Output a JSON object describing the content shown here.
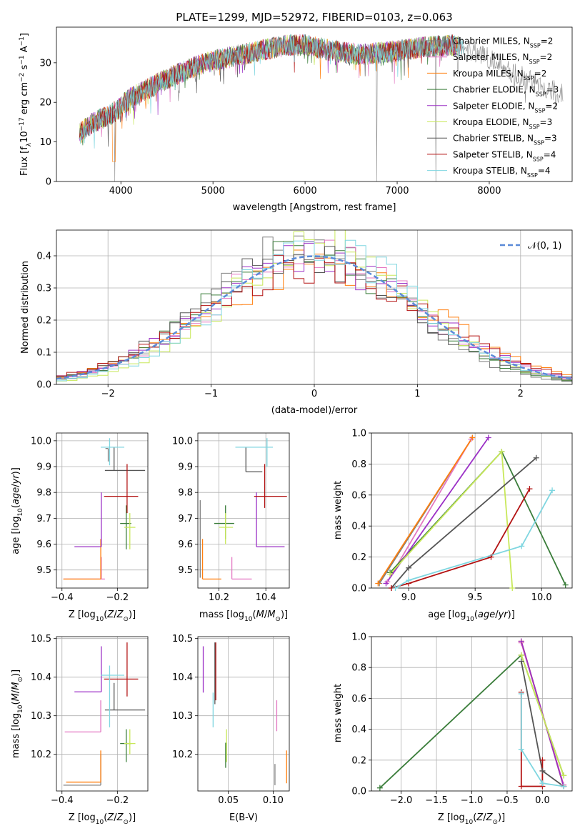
{
  "figure": {
    "title": "PLATE=1299, MJD=52972, FIBERID=0103, z=0.063"
  },
  "series": [
    {
      "name": "Chabrier MILES, N_SSP=2",
      "label_main": "Chabrier MILES, N",
      "label_sub": "SSP",
      "label_tail": "=2",
      "color": "#7f7f7f"
    },
    {
      "name": "Salpeter MILES, N_SSP=2",
      "label_main": "Salpeter MILES, N",
      "label_sub": "SSP",
      "label_tail": "=2",
      "color": "#e377c2"
    },
    {
      "name": "Kroupa MILES, N_SSP=2",
      "label_main": "Kroupa MILES, N",
      "label_sub": "SSP",
      "label_tail": "=2",
      "color": "#ff7f0e"
    },
    {
      "name": "Chabrier ELODIE, N_SSP=3",
      "label_main": "Chabrier ELODIE, N",
      "label_sub": "SSP",
      "label_tail": "=3",
      "color": "#3a7d3a"
    },
    {
      "name": "Salpeter ELODIE, N_SSP=2",
      "label_main": "Salpeter ELODIE, N",
      "label_sub": "SSP",
      "label_tail": "=2",
      "color": "#9b30c6"
    },
    {
      "name": "Kroupa ELODIE, N_SSP=3",
      "label_main": "Kroupa ELODIE, N",
      "label_sub": "SSP",
      "label_tail": "=3",
      "color": "#c8e85a"
    },
    {
      "name": "Chabrier STELIB, N_SSP=3",
      "label_main": "Chabrier STELIB, N",
      "label_sub": "SSP",
      "label_tail": "=3",
      "color": "#555555"
    },
    {
      "name": "Salpeter STELIB, N_SSP=4",
      "label_main": "Salpeter STELIB, N",
      "label_sub": "SSP",
      "label_tail": "=4",
      "color": "#b31212"
    },
    {
      "name": "Kroupa STELIB, N_SSP=4",
      "label_main": "Kroupa STELIB, N",
      "label_sub": "SSP",
      "label_tail": "=4",
      "color": "#7fd6e0"
    }
  ],
  "chart_data": [
    {
      "id": "spectrum",
      "type": "line",
      "xlabel": "wavelength [Angstrom, rest frame]",
      "ylabel": "Flux [f_λ10^-17 erg cm^-2 s^-1 A^-1]",
      "xlim": [
        3300,
        8900
      ],
      "ylim": [
        0,
        39
      ],
      "xticks": [
        4000,
        5000,
        6000,
        7000,
        8000
      ],
      "yticks": [
        0,
        10,
        20,
        30
      ],
      "grid": false,
      "legend": "upper right",
      "continuum": {
        "x": [
          3550,
          3700,
          3900,
          4000,
          4100,
          4300,
          4500,
          4800,
          5000,
          5200,
          5500,
          5800,
          6000,
          6300,
          6600,
          7000,
          7300,
          7600,
          7800,
          8000,
          8200,
          8500,
          8800
        ],
        "y": [
          12,
          15,
          17,
          19,
          21,
          23.5,
          26,
          29,
          30.5,
          31.5,
          33,
          34.5,
          34.5,
          33,
          32,
          33,
          34,
          34.5,
          33,
          31,
          28,
          25,
          22
        ]
      },
      "spikes": [
        {
          "x": 3935,
          "y": 0
        },
        {
          "x": 6780,
          "y": 0
        },
        {
          "x": 7420,
          "y": 0
        }
      ]
    },
    {
      "id": "residuals",
      "type": "histogram",
      "xlabel": "(data-model)/error",
      "ylabel": "Normed distribution",
      "xlim": [
        -2.5,
        2.5
      ],
      "ylim": [
        0,
        0.48
      ],
      "xticks": [
        -2,
        -1,
        0,
        1,
        2
      ],
      "yticks": [
        0.0,
        0.1,
        0.2,
        0.3,
        0.4
      ],
      "grid": true,
      "legend": "upper right",
      "reference_label": "N(0,1)",
      "reference_color": "#5b8bd8",
      "bin_width": 0.1
    },
    {
      "id": "age_vs_Z",
      "type": "errorbar",
      "xlabel": "Z [log10(Z/Z☉)]",
      "ylabel": "age [log10(age/yr)]",
      "xlim": [
        -0.42,
        -0.09
      ],
      "ylim": [
        9.43,
        10.03
      ],
      "xticks": [
        -0.4,
        -0.2
      ],
      "yticks": [
        9.5,
        9.6,
        9.7,
        9.8,
        9.9,
        10.0
      ],
      "points": [
        {
          "s": 0,
          "x": -0.233,
          "y": 9.97,
          "xl": -0.243,
          "xr": -0.233,
          "yl": 9.92,
          "yh": 9.97
        },
        {
          "s": 1,
          "x": -0.258,
          "y": 9.465,
          "xl": -0.395,
          "xr": -0.245,
          "yl": 9.465,
          "yh": 9.55
        },
        {
          "s": 2,
          "x": -0.26,
          "y": 9.465,
          "xl": -0.395,
          "xr": -0.26,
          "yl": 9.465,
          "yh": 9.62
        },
        {
          "s": 3,
          "x": -0.168,
          "y": 9.68,
          "xl": -0.19,
          "xr": -0.15,
          "yl": 9.58,
          "yh": 9.75
        },
        {
          "s": 4,
          "x": -0.258,
          "y": 9.59,
          "xl": -0.355,
          "xr": -0.258,
          "yl": 9.59,
          "yh": 9.8
        },
        {
          "s": 5,
          "x": -0.155,
          "y": 9.665,
          "xl": -0.175,
          "xr": -0.135,
          "yl": 9.58,
          "yh": 9.72
        },
        {
          "s": 6,
          "x": -0.212,
          "y": 9.885,
          "xl": -0.245,
          "xr": -0.1,
          "yl": 9.885,
          "yh": 9.975
        },
        {
          "s": 7,
          "x": -0.165,
          "y": 9.785,
          "xl": -0.248,
          "xr": -0.125,
          "yl": 9.72,
          "yh": 9.91
        },
        {
          "s": 8,
          "x": -0.228,
          "y": 9.975,
          "xl": -0.26,
          "xr": -0.175,
          "yl": 9.905,
          "yh": 10.01
        }
      ]
    },
    {
      "id": "age_vs_mass",
      "type": "errorbar",
      "xlabel": "mass [log10(M/M☉)]",
      "ylabel": "",
      "xlim": [
        10.11,
        10.5
      ],
      "ylim": [
        9.43,
        10.03
      ],
      "xticks": [
        10.2,
        10.4
      ],
      "yticks": [
        9.5,
        9.6,
        9.7,
        9.8,
        9.9,
        10.0
      ],
      "points": [
        {
          "s": 0,
          "x": 10.12,
          "y": 9.62,
          "xl": 10.12,
          "xr": 10.12,
          "yl": 9.47,
          "yh": 9.77
        },
        {
          "s": 1,
          "x": 10.255,
          "y": 9.465,
          "xl": 10.255,
          "xr": 10.34,
          "yl": 9.465,
          "yh": 9.55
        },
        {
          "s": 2,
          "x": 10.13,
          "y": 9.465,
          "xl": 10.13,
          "xr": 10.21,
          "yl": 9.465,
          "yh": 9.62
        },
        {
          "s": 3,
          "x": 10.228,
          "y": 9.68,
          "xl": 10.18,
          "xr": 10.265,
          "yl": 9.62,
          "yh": 9.75
        },
        {
          "s": 4,
          "x": 10.36,
          "y": 9.59,
          "xl": 10.36,
          "xr": 10.48,
          "yl": 9.59,
          "yh": 9.8
        },
        {
          "s": 5,
          "x": 10.228,
          "y": 9.665,
          "xl": 10.2,
          "xr": 10.26,
          "yl": 9.6,
          "yh": 9.72
        },
        {
          "s": 6,
          "x": 10.315,
          "y": 9.88,
          "xl": 10.315,
          "xr": 10.385,
          "yl": 9.88,
          "yh": 9.975
        },
        {
          "s": 7,
          "x": 10.395,
          "y": 9.785,
          "xl": 10.35,
          "xr": 10.49,
          "yl": 9.74,
          "yh": 9.91
        },
        {
          "s": 8,
          "x": 10.405,
          "y": 9.975,
          "xl": 10.27,
          "xr": 10.43,
          "yl": 9.9,
          "yh": 10.01
        }
      ]
    },
    {
      "id": "mass_weight_vs_age",
      "type": "line",
      "xlabel": "age [log10(age/yr)]",
      "ylabel": "mass weight",
      "xlim": [
        8.72,
        10.23
      ],
      "ylim": [
        0,
        1
      ],
      "xticks": [
        9.0,
        9.5,
        10.0
      ],
      "yticks": [
        0.0,
        0.2,
        0.4,
        0.6,
        0.8,
        1.0
      ],
      "grid": true,
      "lines": [
        {
          "s": 0,
          "x": [
            8.78,
            9.48
          ],
          "y": [
            0.03,
            0.97
          ]
        },
        {
          "s": 1,
          "x": [
            8.84,
            9.47
          ],
          "y": [
            0.04,
            0.96
          ]
        },
        {
          "s": 2,
          "x": [
            8.77,
            9.48
          ],
          "y": [
            0.03,
            0.97
          ]
        },
        {
          "s": 3,
          "x": [
            8.86,
            9.7,
            10.18
          ],
          "y": [
            0.1,
            0.88,
            0.02
          ]
        },
        {
          "s": 4,
          "x": [
            8.83,
            9.6
          ],
          "y": [
            0.03,
            0.97
          ]
        },
        {
          "s": 5,
          "x": [
            8.86,
            9.7,
            9.78
          ],
          "y": [
            0.09,
            0.88,
            0.0
          ]
        },
        {
          "s": 6,
          "x": [
            8.87,
            9.0,
            9.96
          ],
          "y": [
            0.0,
            0.13,
            0.84
          ]
        },
        {
          "s": 7,
          "x": [
            8.87,
            9.0,
            9.62,
            9.91
          ],
          "y": [
            0.0,
            0.03,
            0.2,
            0.64
          ]
        },
        {
          "s": 8,
          "x": [
            8.9,
            9.0,
            9.85,
            10.08
          ],
          "y": [
            0.0,
            0.05,
            0.27,
            0.63
          ]
        }
      ]
    },
    {
      "id": "mass_vs_Z",
      "type": "errorbar",
      "xlabel": "Z [log10(Z/Z☉)]",
      "ylabel": "mass [log10(M/M☉)]",
      "xlim": [
        -0.42,
        -0.09
      ],
      "ylim": [
        10.105,
        10.505
      ],
      "xticks": [
        -0.4,
        -0.2
      ],
      "yticks": [
        10.2,
        10.3,
        10.4,
        10.5
      ],
      "points": [
        {
          "s": 0,
          "x": -0.26,
          "y": 10.12,
          "xl": -0.395,
          "xr": -0.26,
          "yl": 10.12,
          "yh": 10.2
        },
        {
          "s": 1,
          "x": -0.26,
          "y": 10.258,
          "xl": -0.39,
          "xr": -0.26,
          "yl": 10.258,
          "yh": 10.34
        },
        {
          "s": 2,
          "x": -0.26,
          "y": 10.128,
          "xl": -0.385,
          "xr": -0.26,
          "yl": 10.128,
          "yh": 10.21
        },
        {
          "s": 3,
          "x": -0.168,
          "y": 10.228,
          "xl": -0.19,
          "xr": -0.15,
          "yl": 10.18,
          "yh": 10.265
        },
        {
          "s": 4,
          "x": -0.258,
          "y": 10.362,
          "xl": -0.355,
          "xr": -0.258,
          "yl": 10.362,
          "yh": 10.48
        },
        {
          "s": 5,
          "x": -0.155,
          "y": 10.228,
          "xl": -0.175,
          "xr": -0.135,
          "yl": 10.2,
          "yh": 10.265
        },
        {
          "s": 6,
          "x": -0.212,
          "y": 10.315,
          "xl": -0.245,
          "xr": -0.1,
          "yl": 10.315,
          "yh": 10.385
        },
        {
          "s": 7,
          "x": -0.165,
          "y": 10.395,
          "xl": -0.248,
          "xr": -0.125,
          "yl": 10.35,
          "yh": 10.49
        },
        {
          "s": 8,
          "x": -0.228,
          "y": 10.405,
          "xl": -0.26,
          "xr": -0.175,
          "yl": 10.27,
          "yh": 10.43
        }
      ]
    },
    {
      "id": "mass_vs_ebv",
      "type": "errorbar",
      "xlabel": "E(B-V)",
      "ylabel": "",
      "xlim": [
        0.016,
        0.118
      ],
      "ylim": [
        10.105,
        10.505
      ],
      "xticks": [
        0.05,
        0.1
      ],
      "yticks": [
        10.2,
        10.3,
        10.4,
        10.5
      ],
      "points": [
        {
          "s": 0,
          "x": 0.102,
          "y": 10.145,
          "yl": 10.12,
          "yh": 10.175
        },
        {
          "s": 1,
          "x": 0.104,
          "y": 10.3,
          "yl": 10.26,
          "yh": 10.34
        },
        {
          "s": 2,
          "x": 0.115,
          "y": 10.17,
          "yl": 10.125,
          "yh": 10.21
        },
        {
          "s": 3,
          "x": 0.047,
          "y": 10.2,
          "yl": 10.165,
          "yh": 10.23
        },
        {
          "s": 4,
          "x": 0.022,
          "y": 10.42,
          "yl": 10.36,
          "yh": 10.48
        },
        {
          "s": 5,
          "x": 0.048,
          "y": 10.225,
          "yl": 10.18,
          "yh": 10.265
        },
        {
          "s": 6,
          "x": 0.035,
          "y": 10.41,
          "yl": 10.33,
          "yh": 10.49
        },
        {
          "s": 7,
          "x": 0.036,
          "y": 10.42,
          "yl": 10.34,
          "yh": 10.49
        },
        {
          "s": 8,
          "x": 0.033,
          "y": 10.31,
          "yl": 10.27,
          "yh": 10.36
        }
      ]
    },
    {
      "id": "mass_weight_vs_Z",
      "type": "line",
      "xlabel": "Z [log10(Z/Z☉)]",
      "ylabel": "mass weight",
      "xlim": [
        -2.42,
        0.42
      ],
      "ylim": [
        0,
        1
      ],
      "xticks": [
        -2.0,
        -1.5,
        -1.0,
        -0.5,
        0.0
      ],
      "yticks": [
        0.0,
        0.2,
        0.4,
        0.6,
        0.8,
        1.0
      ],
      "grid": true,
      "lines": [
        {
          "s": 0,
          "x": [
            -0.3,
            0.3
          ],
          "y": [
            0.97,
            0.03
          ]
        },
        {
          "s": 1,
          "x": [
            -0.3,
            0.3
          ],
          "y": [
            0.96,
            0.04
          ]
        },
        {
          "s": 2,
          "x": [
            -0.3,
            0.3
          ],
          "y": [
            0.97,
            0.03
          ]
        },
        {
          "s": 3,
          "x": [
            -2.3,
            -0.3,
            0.3
          ],
          "y": [
            0.02,
            0.88,
            0.1
          ]
        },
        {
          "s": 4,
          "x": [
            -0.3,
            0.3
          ],
          "y": [
            0.97,
            0.03
          ]
        },
        {
          "s": 5,
          "x": [
            -0.3,
            0.3
          ],
          "y": [
            0.88,
            0.1
          ]
        },
        {
          "s": 6,
          "x": [
            -0.3,
            0.0,
            0.3
          ],
          "y": [
            0.84,
            0.13,
            0.03
          ]
        },
        {
          "s": 7,
          "x": [
            -0.3,
            -0.3,
            0.0,
            0.0
          ],
          "y": [
            0.64,
            0.03,
            0.03,
            0.2
          ]
        },
        {
          "s": 8,
          "x": [
            -0.3,
            -0.3,
            0.0,
            0.3
          ],
          "y": [
            0.63,
            0.27,
            0.05,
            0.03
          ]
        }
      ]
    }
  ]
}
